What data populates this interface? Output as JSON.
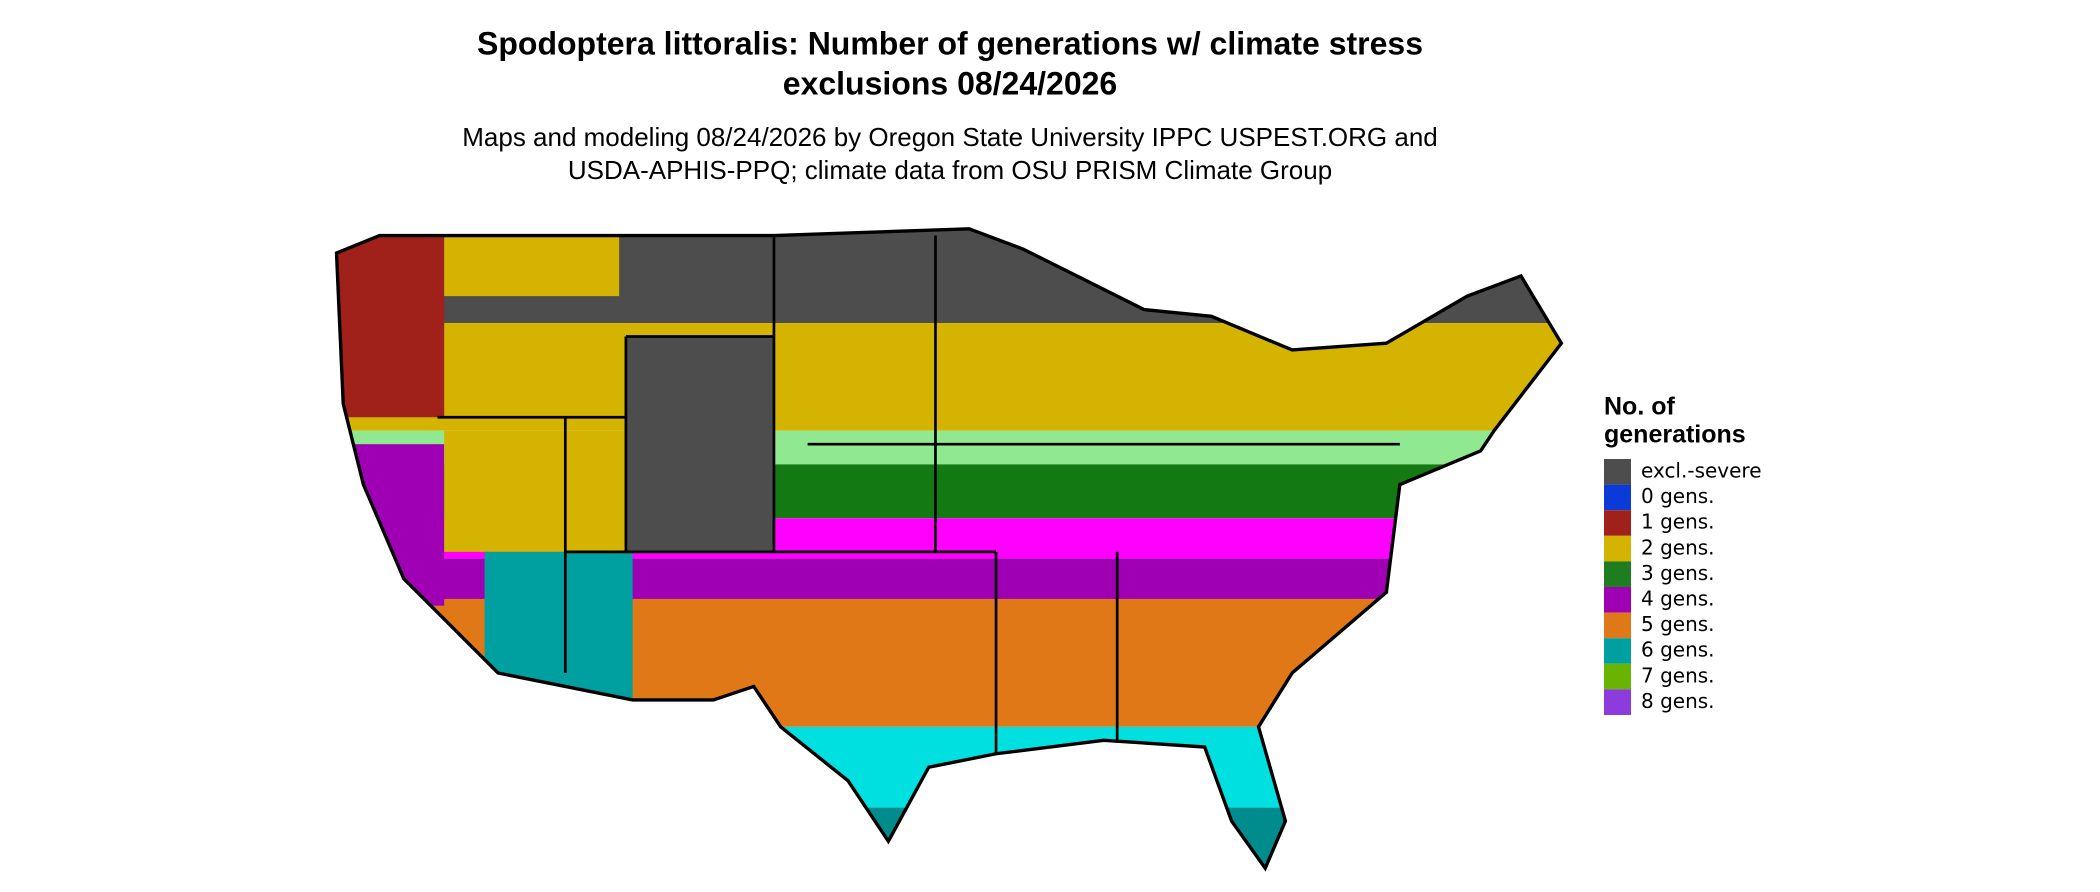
{
  "header": {
    "title": "Spodoptera littoralis: Number of generations w/ climate stress",
    "title_line2": "exclusions 08/24/2026",
    "subtitle": "Maps and modeling 08/24/2026 by Oregon State University IPPC USPEST.ORG and",
    "subtitle_line2": "USDA-APHIS-PPQ; climate data from OSU PRISM Climate Group"
  },
  "legend": {
    "title": "No. of",
    "title_line2": "generations",
    "items": [
      {
        "label": "excl.-severe",
        "color": "#4d4d4d"
      },
      {
        "label": "0 gens.",
        "color": "#0a3bd8"
      },
      {
        "label": "1 gens.",
        "color": "#a0201a"
      },
      {
        "label": "2 gens.",
        "color": "#d4b400"
      },
      {
        "label": "3 gens.",
        "color": "#1e7d1e"
      },
      {
        "label": "4 gens.",
        "color": "#a000b4"
      },
      {
        "label": "5 gens.",
        "color": "#e07818"
      },
      {
        "label": "6 gens.",
        "color": "#00a0a0"
      },
      {
        "label": "7 gens.",
        "color": "#68b400"
      },
      {
        "label": "8 gens.",
        "color": "#8c3cdc"
      }
    ]
  }
}
